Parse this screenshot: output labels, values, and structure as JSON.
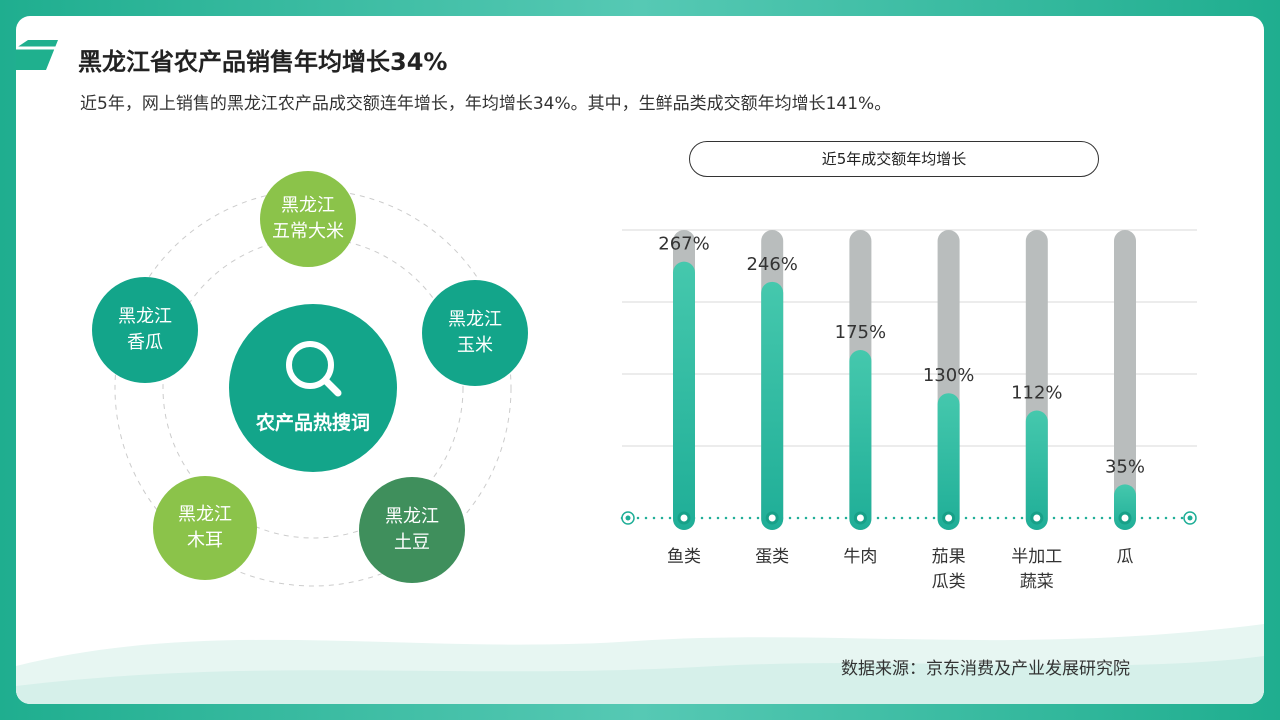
{
  "header": {
    "title": "黑龙江省农产品销售年均增长34%",
    "subtitle": "近5年，网上销售的黑龙江农产品成交额连年增长，年均增长34%。其中，生鲜品类成交额年均增长141%。"
  },
  "diagram": {
    "center": "农产品热搜词",
    "nodes": [
      {
        "label": "黑龙江\n五常大米",
        "color": "#8bc34a"
      },
      {
        "label": "黑龙江\n玉米",
        "color": "#13a58a"
      },
      {
        "label": "黑龙江\n土豆",
        "color": "#3f8f5c"
      },
      {
        "label": "黑龙江\n木耳",
        "color": "#8bc34a"
      },
      {
        "label": "黑龙江\n香瓜",
        "color": "#13a58a"
      }
    ]
  },
  "chart_data": {
    "type": "bar",
    "title": "近5年成交额年均增长",
    "categories": [
      "鱼类",
      "蛋类",
      "牛肉",
      "茄果\n瓜类",
      "半加工\n蔬菜",
      "瓜"
    ],
    "values": [
      267,
      246,
      175,
      130,
      112,
      35
    ],
    "value_labels": [
      "267%",
      "246%",
      "175%",
      "130%",
      "112%",
      "35%"
    ],
    "color": "#1fae97",
    "track_color": "#b9bdbd",
    "ylim": [
      0,
      300
    ],
    "yticks": [
      0,
      75,
      150,
      225,
      300
    ],
    "grid": true
  },
  "footer": {
    "source": "数据来源：京东消费及产业发展研究院"
  }
}
